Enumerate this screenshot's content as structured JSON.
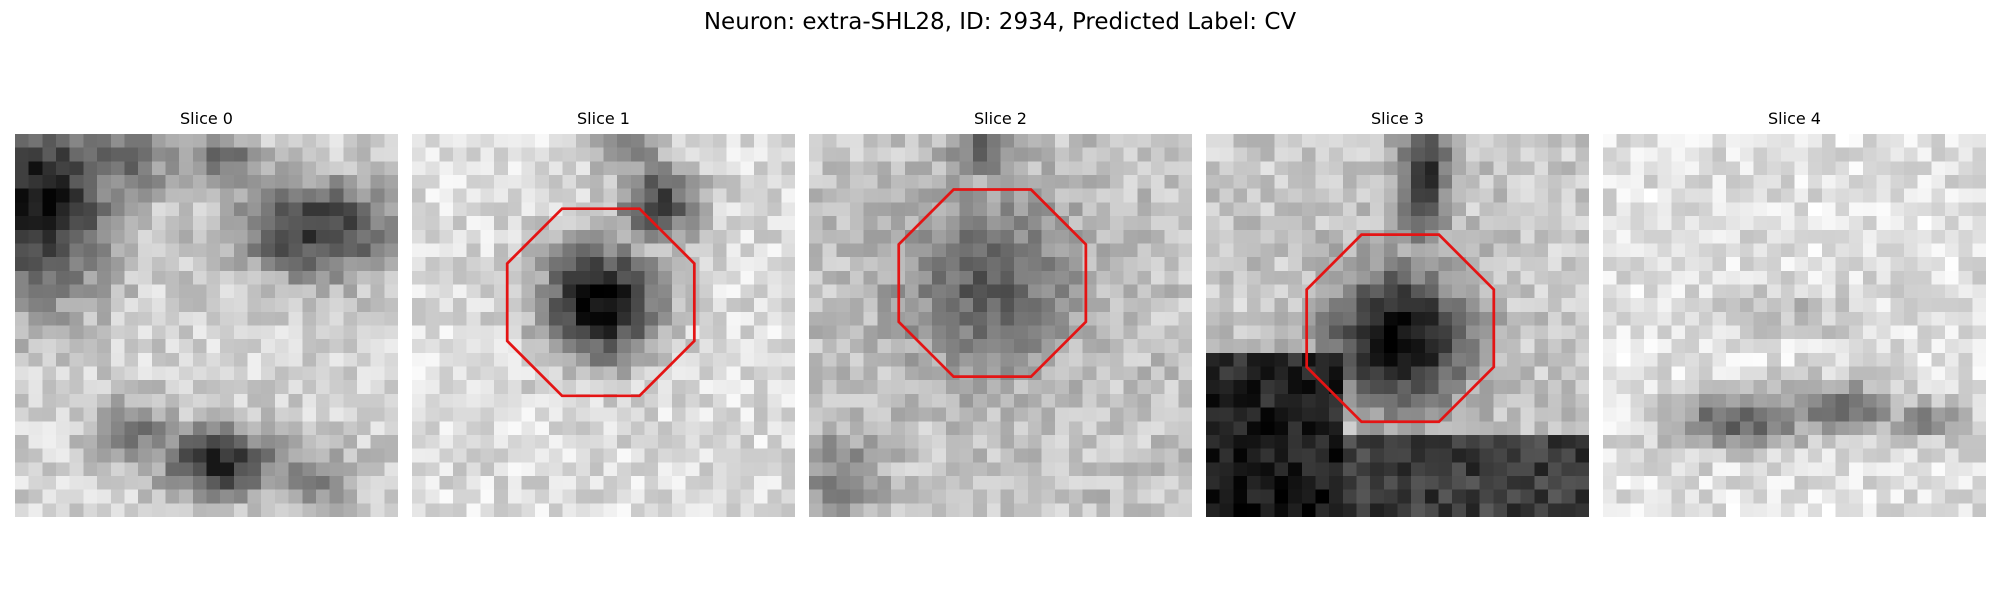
{
  "figure": {
    "title": "Neuron: extra-SHL28, ID: 2934, Predicted Label: CV",
    "outline_color": "#e41414"
  },
  "panels": [
    {
      "title": "Slice 0",
      "has_outline": false
    },
    {
      "title": "Slice 1",
      "has_outline": true
    },
    {
      "title": "Slice 2",
      "has_outline": true
    },
    {
      "title": "Slice 3",
      "has_outline": true
    },
    {
      "title": "Slice 4",
      "has_outline": false
    }
  ]
}
